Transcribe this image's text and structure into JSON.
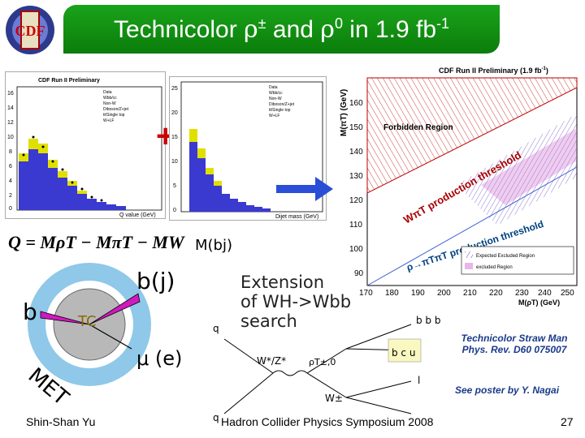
{
  "slide": {
    "title": "Technicolor ρ± and ρ0 in 1.9 fb-1",
    "title_parts": {
      "a": "Technicolor ",
      "rho1": "ρ",
      "pm": "±",
      "b": " and ",
      "rho2": "ρ",
      "zero": "0",
      "c": " in 1.9 fb",
      "exp": "-1"
    },
    "logo_text": "CDF",
    "formula": "Q = MρT − MπT − MW",
    "mbj_label": "M(bj)",
    "bj_label": "b(j)",
    "b_label": "b",
    "tc_label": "TC",
    "met_label": "MET",
    "mu_label": "μ (e)",
    "extension_text": [
      "Extension",
      "of WH->Wbb",
      "search"
    ],
    "ref_line1": "Technicolor Straw Man",
    "ref_line2": "Phys. Rev. D60 075007",
    "poster": "See poster by Y. Nagai",
    "footer_author": "Shin-Shan Yu",
    "footer_conf": "Hadron Collider Physics Symposium 2008",
    "page_number": "27"
  },
  "plots": {
    "left_title": "CDF Run II Preliminary",
    "left_xlabel": "Q value (GeV)",
    "left_legend": [
      "Data",
      "Wbb/cc",
      "Non-W",
      "Diboson/Z+jet",
      "tt/Single top",
      "W+LF"
    ],
    "right_xlabel": "Dijet mass (GeV)",
    "right_legend": [
      "Data",
      "Wbb/cc",
      "Non-W",
      "Diboson/Z+jet",
      "tt/Single top",
      "W+LF"
    ],
    "left_yticks": [
      "16",
      "14",
      "12",
      "10",
      "8",
      "6",
      "4",
      "2",
      "0"
    ],
    "right_yticks": [
      "25",
      "20",
      "15",
      "10",
      "5",
      "0"
    ],
    "plus": "+"
  },
  "exclusion": {
    "title": "CDF Run II Preliminary (1.9 fb",
    "title_exp": "-1",
    "title_close": ")",
    "ylabel": "M(πT) (GeV)",
    "yticks": [
      "160",
      "150",
      "140",
      "130",
      "120",
      "110",
      "100",
      "90"
    ],
    "xticks": [
      "170",
      "180",
      "190",
      "200",
      "210",
      "220",
      "230",
      "240",
      "250"
    ],
    "xlabel": "M(ρT) (GeV)",
    "forbidden": "Forbidden Region",
    "threshold1": "WπT production threshold",
    "threshold2": "ρ→πTπT production threshold",
    "legend": [
      "Expected Excluded Region",
      "excluded Region"
    ]
  },
  "feynman": {
    "q": "q",
    "qbar": "q",
    "wz": "W*/Z*",
    "rho": "ρT±,0",
    "w": "W±",
    "bbb": "b b b",
    "bcu": "b c u",
    "l": "l"
  }
}
